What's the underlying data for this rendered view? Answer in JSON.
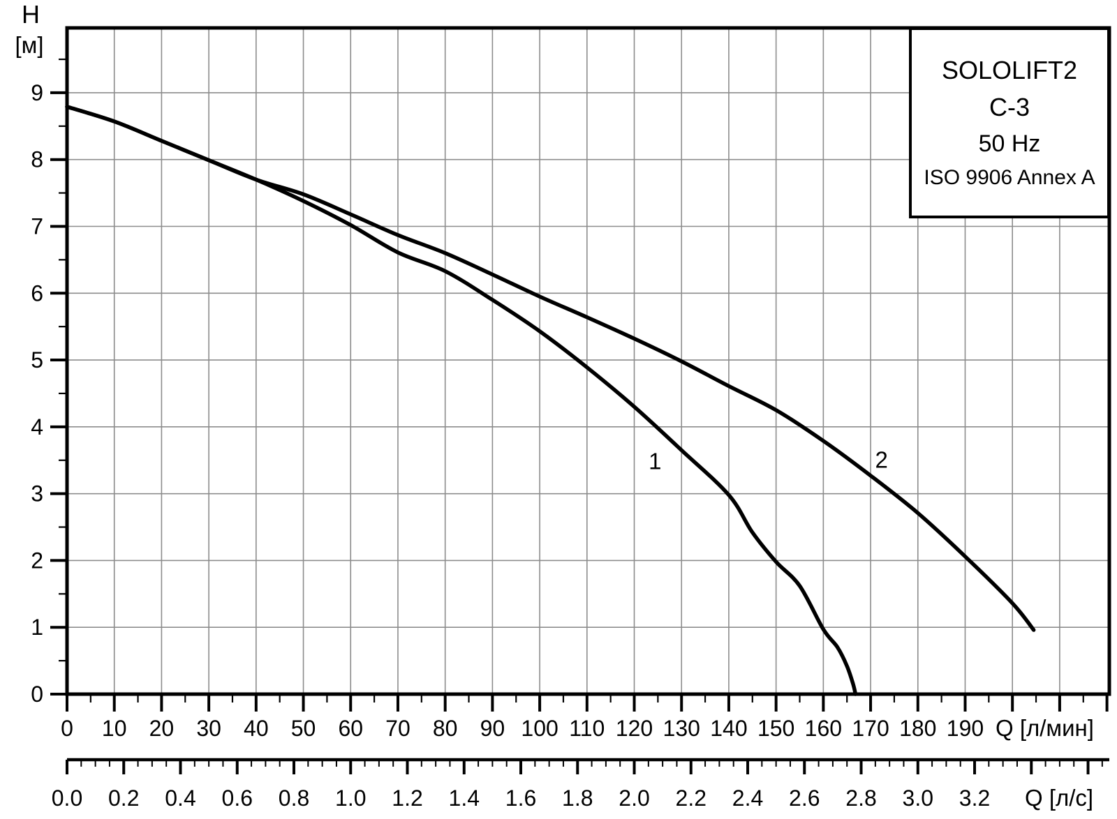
{
  "legend_box": {
    "product": "SOLOLIFT2",
    "model": "C-3",
    "frequency": "50 Hz",
    "standard": "ISO 9906 Annex A"
  },
  "chart_data": {
    "type": "line",
    "title": "SOLOLIFT2 C-3 50 Hz pump performance curves (ISO 9906 Annex A)",
    "grid": {
      "on": true,
      "x_step": 10,
      "y_step": 1,
      "color": "#8c8c8c"
    },
    "curve_color": "#000000",
    "y_axis": {
      "label_lines": [
        "H",
        "[м]"
      ],
      "min": 0,
      "max": 9.97,
      "major_step": 1,
      "minor_step": 0.5,
      "tick_labels": [
        "0",
        "1",
        "2",
        "3",
        "4",
        "5",
        "6",
        "7",
        "8",
        "9"
      ],
      "unit": "м"
    },
    "x_axis": {
      "label": "Q [л/мин]",
      "min": 0,
      "max": 220.5,
      "major_step": 10,
      "minor_step": 5,
      "tick_labels": [
        "0",
        "10",
        "20",
        "30",
        "40",
        "50",
        "60",
        "70",
        "80",
        "90",
        "100",
        "110",
        "120",
        "130",
        "140",
        "150",
        "160",
        "170",
        "180",
        "190"
      ],
      "unit": "л/мин"
    },
    "x2_axis": {
      "label": "Q [л/с]",
      "min": 0,
      "max": 3.675,
      "major_step": 0.2,
      "minor_step": 0.05,
      "primary_units_per_unit": 60,
      "tick_labels": [
        "0.0",
        "0.2",
        "0.4",
        "0.6",
        "0.8",
        "1.0",
        "1.2",
        "1.4",
        "1.6",
        "1.8",
        "2.0",
        "2.2",
        "2.4",
        "2.6",
        "2.8",
        "3.0",
        "3.2"
      ],
      "unit": "л/с"
    },
    "series": [
      {
        "name": "1",
        "label": "1",
        "label_at": {
          "q": 124.4,
          "h": 3.48
        },
        "points": [
          [
            0,
            8.79
          ],
          [
            10,
            8.57
          ],
          [
            20,
            8.28
          ],
          [
            30,
            7.99
          ],
          [
            40,
            7.7
          ],
          [
            50,
            7.38
          ],
          [
            60,
            7.02
          ],
          [
            70,
            6.61
          ],
          [
            80,
            6.33
          ],
          [
            90,
            5.9
          ],
          [
            100,
            5.43
          ],
          [
            110,
            4.89
          ],
          [
            120,
            4.3
          ],
          [
            130,
            3.65
          ],
          [
            140,
            2.98
          ],
          [
            145,
            2.42
          ],
          [
            150,
            1.98
          ],
          [
            155,
            1.62
          ],
          [
            160,
            0.97
          ],
          [
            163,
            0.7
          ],
          [
            165,
            0.42
          ],
          [
            166.3,
            0.15
          ],
          [
            166.8,
            0
          ]
        ]
      },
      {
        "name": "2",
        "label": "2",
        "label_at": {
          "q": 172.3,
          "h": 3.5
        },
        "points": [
          [
            0,
            8.79
          ],
          [
            10,
            8.57
          ],
          [
            20,
            8.28
          ],
          [
            30,
            7.99
          ],
          [
            40,
            7.7
          ],
          [
            50,
            7.48
          ],
          [
            60,
            7.18
          ],
          [
            70,
            6.87
          ],
          [
            80,
            6.6
          ],
          [
            90,
            6.28
          ],
          [
            100,
            5.95
          ],
          [
            110,
            5.64
          ],
          [
            120,
            5.32
          ],
          [
            130,
            4.98
          ],
          [
            140,
            4.61
          ],
          [
            150,
            4.25
          ],
          [
            160,
            3.79
          ],
          [
            170,
            3.27
          ],
          [
            180,
            2.71
          ],
          [
            190,
            2.06
          ],
          [
            200,
            1.36
          ],
          [
            204.5,
            0.96
          ]
        ]
      }
    ]
  }
}
